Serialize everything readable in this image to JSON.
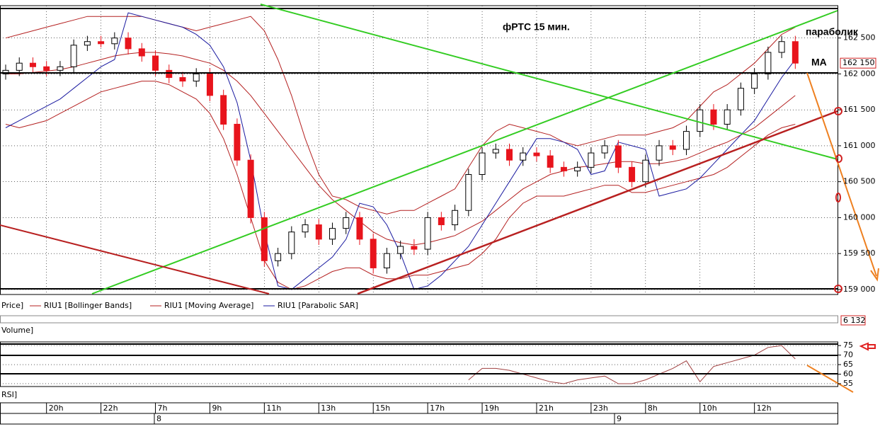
{
  "chart_data": [
    {
      "type": "candlestick",
      "title": "фРТС    15 мин.",
      "annotations": [
        "параболик",
        "MA"
      ],
      "price_label": "Price]",
      "last_price_label": "162 150",
      "volume_label": "Volume]",
      "volume_value_label": "6 132",
      "date_labels": [
        "8",
        "9"
      ],
      "categories": [
        null,
        null,
        null,
        "20h",
        null,
        null,
        null,
        "22h",
        null,
        null,
        null,
        "7h",
        null,
        null,
        null,
        "9h",
        null,
        null,
        null,
        "11h",
        null,
        null,
        null,
        "13h",
        null,
        null,
        null,
        "15h",
        null,
        null,
        null,
        "17h",
        null,
        null,
        null,
        "19h",
        null,
        null,
        null,
        "21h",
        null,
        null,
        null,
        "23h",
        null,
        null,
        null,
        "8h",
        null,
        null,
        null,
        "10h",
        null,
        null,
        null,
        "12h",
        null,
        null,
        null
      ],
      "ohlc": [
        [
          162000,
          162130,
          161920,
          162050
        ],
        [
          162050,
          162230,
          161970,
          162150
        ],
        [
          162150,
          162230,
          162020,
          162100
        ],
        [
          162100,
          162180,
          161970,
          162050
        ],
        [
          162050,
          162180,
          161970,
          162100
        ],
        [
          162100,
          162480,
          162020,
          162400
        ],
        [
          162400,
          162530,
          162320,
          162450
        ],
        [
          162450,
          162530,
          162370,
          162420
        ],
        [
          162420,
          162580,
          162340,
          162500
        ],
        [
          162500,
          162580,
          162270,
          162350
        ],
        [
          162350,
          162430,
          162170,
          162250
        ],
        [
          162250,
          162330,
          161970,
          162050
        ],
        [
          162050,
          162130,
          161870,
          161950
        ],
        [
          161950,
          162030,
          161820,
          161900
        ],
        [
          161900,
          162080,
          161820,
          162000
        ],
        [
          162000,
          162080,
          161620,
          161700
        ],
        [
          161700,
          161780,
          161220,
          161300
        ],
        [
          161300,
          161380,
          160720,
          160800
        ],
        [
          160800,
          160880,
          159920,
          160000
        ],
        [
          160000,
          160080,
          159320,
          159400
        ],
        [
          159400,
          159580,
          159320,
          159500
        ],
        [
          159500,
          159880,
          159420,
          159800
        ],
        [
          159800,
          159980,
          159720,
          159900
        ],
        [
          159900,
          159980,
          159620,
          159700
        ],
        [
          159700,
          159930,
          159620,
          159850
        ],
        [
          159850,
          160080,
          159770,
          160000
        ],
        [
          160000,
          160080,
          159620,
          159700
        ],
        [
          159700,
          159780,
          159220,
          159300
        ],
        [
          159300,
          159580,
          159220,
          159500
        ],
        [
          159500,
          159680,
          159420,
          159600
        ],
        [
          159600,
          159700,
          159480,
          159560
        ],
        [
          159560,
          160080,
          159480,
          160000
        ],
        [
          160000,
          160080,
          159820,
          159900
        ],
        [
          159900,
          160180,
          159820,
          160100
        ],
        [
          160100,
          160680,
          160020,
          160600
        ],
        [
          160600,
          160980,
          160520,
          160900
        ],
        [
          160900,
          161030,
          160820,
          160950
        ],
        [
          160950,
          161030,
          160720,
          160800
        ],
        [
          160800,
          160980,
          160720,
          160900
        ],
        [
          160900,
          160980,
          160780,
          160860
        ],
        [
          160860,
          160940,
          160620,
          160700
        ],
        [
          160700,
          160780,
          160570,
          160650
        ],
        [
          160650,
          160780,
          160570,
          160700
        ],
        [
          160700,
          160980,
          160620,
          160900
        ],
        [
          160900,
          161080,
          160820,
          161000
        ],
        [
          161000,
          161080,
          160620,
          160700
        ],
        [
          160700,
          160780,
          160420,
          160500
        ],
        [
          160500,
          160880,
          160420,
          160800
        ],
        [
          160800,
          161080,
          160720,
          161000
        ],
        [
          161000,
          161080,
          160870,
          160950
        ],
        [
          160950,
          161280,
          160870,
          161200
        ],
        [
          161200,
          161580,
          161120,
          161500
        ],
        [
          161500,
          161580,
          161220,
          161300
        ],
        [
          161300,
          161580,
          161220,
          161500
        ],
        [
          161500,
          161880,
          161420,
          161800
        ],
        [
          161800,
          162080,
          161720,
          162000
        ],
        [
          162000,
          162380,
          161920,
          162300
        ],
        [
          162300,
          162530,
          162220,
          162450
        ],
        [
          162450,
          162530,
          162070,
          162150
        ]
      ],
      "up_color": "#ffffff",
      "down_color": "#e8141c",
      "bands": {
        "name": "RIU1 [Bollinger Bands]",
        "color": "#b42020",
        "upper": [
          162500,
          162550,
          162600,
          162650,
          162700,
          162750,
          162800,
          162800,
          162800,
          162800,
          162800,
          162750,
          162700,
          162650,
          162600,
          162650,
          162700,
          162750,
          162800,
          162600,
          162200,
          161700,
          161100,
          160600,
          160300,
          160250,
          160150,
          160100,
          160050,
          160100,
          160100,
          160200,
          160300,
          160400,
          160700,
          161000,
          161200,
          161300,
          161250,
          161200,
          161150,
          161050,
          161000,
          161050,
          161100,
          161150,
          161150,
          161150,
          161200,
          161250,
          161350,
          161550,
          161750,
          161850,
          162000,
          162150,
          162350,
          162550,
          162650
        ],
        "lower": [
          161300,
          161250,
          161300,
          161350,
          161450,
          161550,
          161650,
          161750,
          161800,
          161850,
          161900,
          161900,
          161850,
          161750,
          161650,
          161450,
          161100,
          160600,
          160000,
          159400,
          159100,
          159000,
          159050,
          159150,
          159250,
          159300,
          159300,
          159200,
          159150,
          159150,
          159200,
          159200,
          159250,
          159300,
          159350,
          159500,
          159700,
          160000,
          160200,
          160300,
          160300,
          160300,
          160350,
          160400,
          160450,
          160450,
          160350,
          160350,
          160400,
          160450,
          160500,
          160550,
          160600,
          160700,
          160850,
          161000,
          161150,
          161250,
          161300
        ]
      },
      "series": [
        {
          "name": "RIU1 [Moving Average]",
          "color": "#b42020",
          "values": [
            162000,
            162000,
            162020,
            162040,
            162060,
            162100,
            162150,
            162200,
            162250,
            162280,
            162300,
            162300,
            162280,
            162250,
            162200,
            162150,
            162050,
            161900,
            161700,
            161450,
            161200,
            160950,
            160700,
            160450,
            160250,
            160100,
            159950,
            159800,
            159700,
            159650,
            159620,
            159650,
            159700,
            159750,
            159850,
            159950,
            160100,
            160250,
            160400,
            160500,
            160600,
            160650,
            160700,
            160720,
            160750,
            160780,
            160780,
            160750,
            160750,
            160780,
            160820,
            160900,
            160980,
            161050,
            161150,
            161250,
            161400,
            161550,
            161700
          ]
        },
        {
          "name": "RIU1 [Parabolic SAR]",
          "color": "#1a1aa0",
          "values": [
            161250,
            161350,
            161450,
            161550,
            161650,
            161800,
            161950,
            162100,
            162200,
            162850,
            162800,
            162750,
            162700,
            162650,
            162550,
            162400,
            162100,
            161600,
            160800,
            159800,
            159050,
            159000,
            159150,
            159300,
            159450,
            159700,
            160200,
            160150,
            159900,
            159500,
            159000,
            159050,
            159200,
            159400,
            159600,
            159900,
            160200,
            160500,
            160800,
            161100,
            161100,
            161050,
            160950,
            160600,
            160650,
            161050,
            161000,
            160950,
            160300,
            160350,
            160400,
            160550,
            160750,
            160950,
            161150,
            161350,
            161650,
            161950,
            162200
          ]
        }
      ],
      "ylim": [
        158930,
        162950
      ],
      "yticks": [
        {
          "value": 159000,
          "label": "159 000"
        },
        {
          "value": 159500,
          "label": "159 500"
        },
        {
          "value": 160000,
          "label": "160 000"
        },
        {
          "value": 160500,
          "label": "160 500"
        },
        {
          "value": 161000,
          "label": "161 000"
        },
        {
          "value": 161500,
          "label": "161 500"
        },
        {
          "value": 162000,
          "label": "162 000"
        },
        {
          "value": 162500,
          "label": "162 500"
        }
      ],
      "grid": true
    },
    {
      "type": "line",
      "title": "RSI]",
      "color": "#a04040",
      "values": [
        null,
        null,
        null,
        null,
        null,
        null,
        null,
        null,
        null,
        null,
        null,
        null,
        null,
        null,
        null,
        null,
        null,
        null,
        null,
        null,
        null,
        null,
        null,
        null,
        null,
        null,
        null,
        null,
        null,
        null,
        null,
        null,
        null,
        null,
        57,
        63,
        63,
        62,
        60,
        58,
        56,
        55,
        57,
        58,
        59,
        55,
        55,
        57,
        60,
        63,
        67,
        56,
        64,
        66,
        68,
        70,
        74,
        75,
        68
      ],
      "ylim": [
        53.5,
        76.9
      ],
      "yticks": [
        55,
        60,
        65,
        70,
        75
      ],
      "grid": true
    }
  ]
}
